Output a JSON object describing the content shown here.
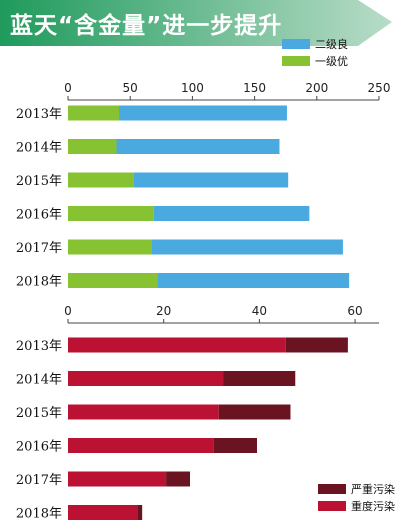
{
  "title": "蓝天“含金量”进一步提升",
  "colors": {
    "banner_start": "#1f9a5c",
    "banner_end": "#b8dcc8",
    "good": "#4aa9df",
    "excellent": "#86c232",
    "heavy": "#bb1233",
    "severe": "#6b1421",
    "axis": "#444444"
  },
  "chart_data": [
    {
      "type": "bar",
      "orientation": "horizontal",
      "stacked": true,
      "categories": [
        "2013年",
        "2014年",
        "2015年",
        "2016年",
        "2017年",
        "2018年"
      ],
      "xlim": [
        0,
        250
      ],
      "xticks": [
        0,
        50,
        100,
        150,
        200,
        250
      ],
      "axis_position": "top",
      "legend_position": "top-right",
      "series": [
        {
          "name": "一级优",
          "values": [
            41,
            39,
            53,
            69,
            67,
            72
          ],
          "color_key": "excellent"
        },
        {
          "name": "二级良",
          "values": [
            135,
            131,
            124,
            125,
            154,
            154
          ],
          "color_key": "good"
        }
      ]
    },
    {
      "type": "bar",
      "orientation": "horizontal",
      "stacked": true,
      "categories": [
        "2013年",
        "2014年",
        "2015年",
        "2016年",
        "2017年",
        "2018年"
      ],
      "xlim": [
        0,
        65
      ],
      "xticks": [
        0,
        20,
        40,
        60
      ],
      "axis_position": "top",
      "legend_position": "bottom-right",
      "series": [
        {
          "name": "重度污染",
          "values": [
            45.5,
            32.5,
            31.5,
            30.5,
            20.5,
            14.5
          ],
          "color_key": "heavy"
        },
        {
          "name": "严重污染",
          "values": [
            13,
            15,
            15,
            9,
            5,
            1
          ],
          "color_key": "severe"
        }
      ]
    }
  ]
}
